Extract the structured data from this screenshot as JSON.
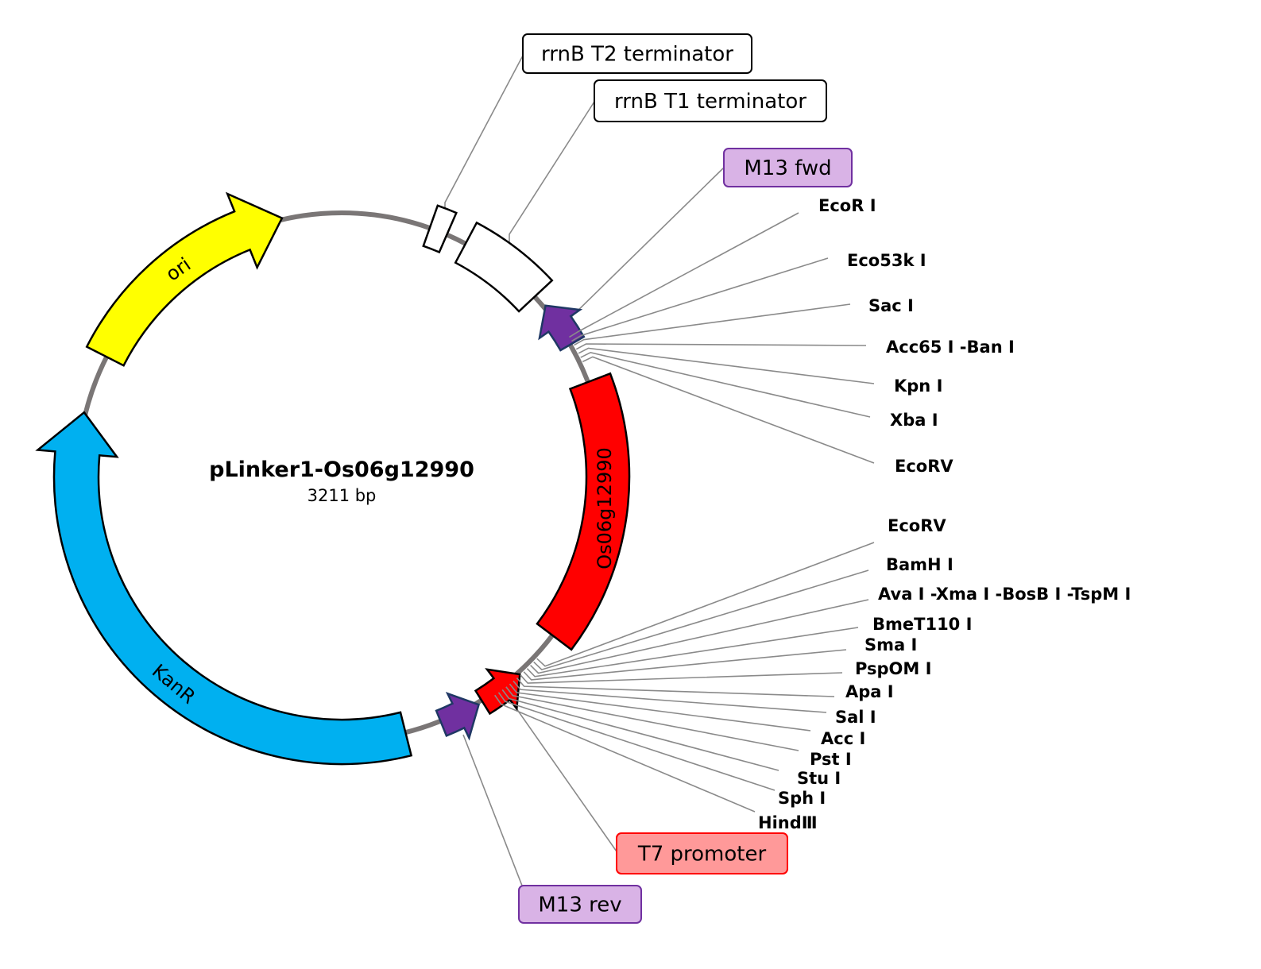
{
  "plasmid": {
    "name": "pLinker1-Os06g12990",
    "size": "3211 bp",
    "backbone_color": "#7a7676"
  },
  "features": [
    {
      "name": "ori",
      "label": "ori",
      "color": "#ffff00"
    },
    {
      "name": "rrnB T2 terminator",
      "label": "",
      "color": "#ffffff"
    },
    {
      "name": "rrnB T1 terminator",
      "label": "",
      "color": "#ffffff"
    },
    {
      "name": "M13 fwd",
      "label": "",
      "color": "#7030a0"
    },
    {
      "name": "Os06g12990",
      "label": "Os06g12990",
      "color": "#ff0000"
    },
    {
      "name": "T7 promoter",
      "label": "",
      "color": "#ff0000"
    },
    {
      "name": "M13 rev",
      "label": "",
      "color": "#7030a0"
    },
    {
      "name": "KanR",
      "label": "KanR",
      "color": "#00b0f0"
    }
  ],
  "callouts": [
    {
      "label": "rrnB T2 terminator",
      "fill": "#ffffff",
      "stroke": "#000000"
    },
    {
      "label": "rrnB T1 terminator",
      "fill": "#ffffff",
      "stroke": "#000000"
    },
    {
      "label": "M13 fwd",
      "fill": "#d9b3e6",
      "stroke": "#7030a0"
    },
    {
      "label": "T7 promoter",
      "fill": "#ff9999",
      "stroke": "#ff0000"
    },
    {
      "label": "M13 rev",
      "fill": "#d9b3e6",
      "stroke": "#7030a0"
    }
  ],
  "sites_upper": [
    "EcoR I",
    "Eco53k I",
    "Sac I",
    "Acc65 I -Ban I",
    "Kpn I",
    "Xba I",
    "EcoRV"
  ],
  "sites_lower": [
    "EcoRV",
    "BamH I",
    "Ava I -Xma I -BosB I -TspM I",
    "BmeT110 I",
    "Sma I",
    "PspOM I",
    "Apa I",
    "Sal I",
    "Acc I",
    "Pst I",
    "Stu I",
    "Sph I",
    "HindⅢ"
  ]
}
